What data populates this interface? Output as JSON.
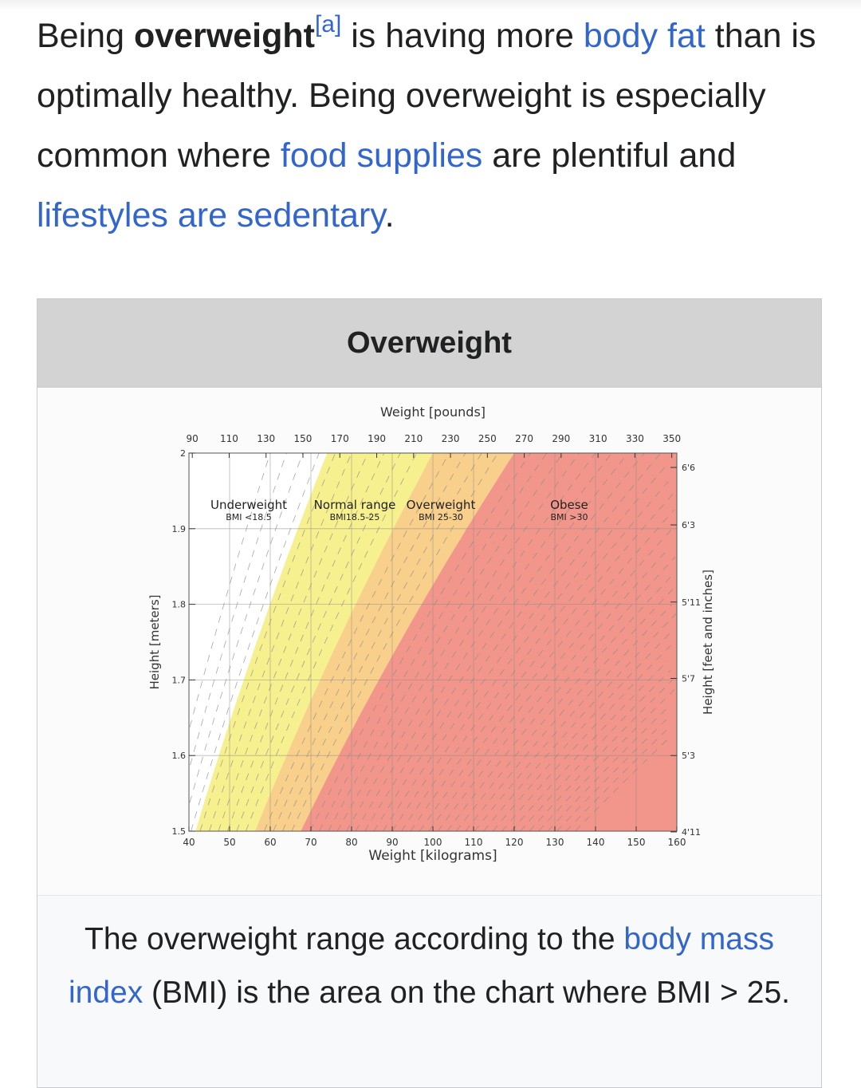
{
  "intro": {
    "t1": "Being ",
    "bold_term": "overweight",
    "note": "[a]",
    "t2": " is having more ",
    "link_body_fat": "body fat",
    "t3": " than is optimally healthy. Being overweight is especially common where ",
    "link_food": "food supplies",
    "t4": " are plentiful and ",
    "link_lifestyle": "lifestyles are sedentary",
    "t5": "."
  },
  "infobox": {
    "title": "Overweight",
    "caption": {
      "t1": "The overweight range according to the ",
      "link_bmi": "body mass index",
      "t2": " (BMI) is the area on the chart where BMI > 25."
    }
  },
  "chart_data": {
    "type": "area",
    "title": "",
    "xlabel": "Weight [kilograms]",
    "ylabel": "Height [meters]",
    "x2label": "Weight [pounds]",
    "y2label": "Height [feet and inches]",
    "xlim": [
      40,
      160
    ],
    "ylim": [
      1.5,
      2.0
    ],
    "x_ticks": [
      40,
      50,
      60,
      70,
      80,
      90,
      100,
      110,
      120,
      130,
      140,
      150,
      160
    ],
    "y_ticks": [
      1.5,
      1.6,
      1.7,
      1.8,
      1.9,
      2
    ],
    "x2_ticks": [
      90,
      110,
      130,
      150,
      170,
      190,
      210,
      230,
      250,
      270,
      290,
      310,
      330,
      350
    ],
    "y2_ticks": [
      "4'11",
      "5'3",
      "5'7",
      "5'11",
      "6'3",
      "6'6"
    ],
    "y2_tick_values_m": [
      1.499,
      1.6,
      1.702,
      1.803,
      1.905,
      1.981
    ],
    "grid": true,
    "bmi_boundaries": [
      18.5,
      25,
      30
    ],
    "regions": [
      {
        "name": "Underweight",
        "label": "BMI <18.5",
        "bmi_min": 0,
        "bmi_max": 18.5,
        "color": "#ffffff"
      },
      {
        "name": "Normal range",
        "label": "BMI18.5-25",
        "bmi_min": 18.5,
        "bmi_max": 25,
        "color": "#f7f08e"
      },
      {
        "name": "Overweight",
        "label": "BMI 25-30",
        "bmi_min": 25,
        "bmi_max": 30,
        "color": "#f8d08b"
      },
      {
        "name": "Obese",
        "label": "BMI >30",
        "bmi_min": 30,
        "bmi_max": 100,
        "color": "#f2968b"
      }
    ]
  }
}
